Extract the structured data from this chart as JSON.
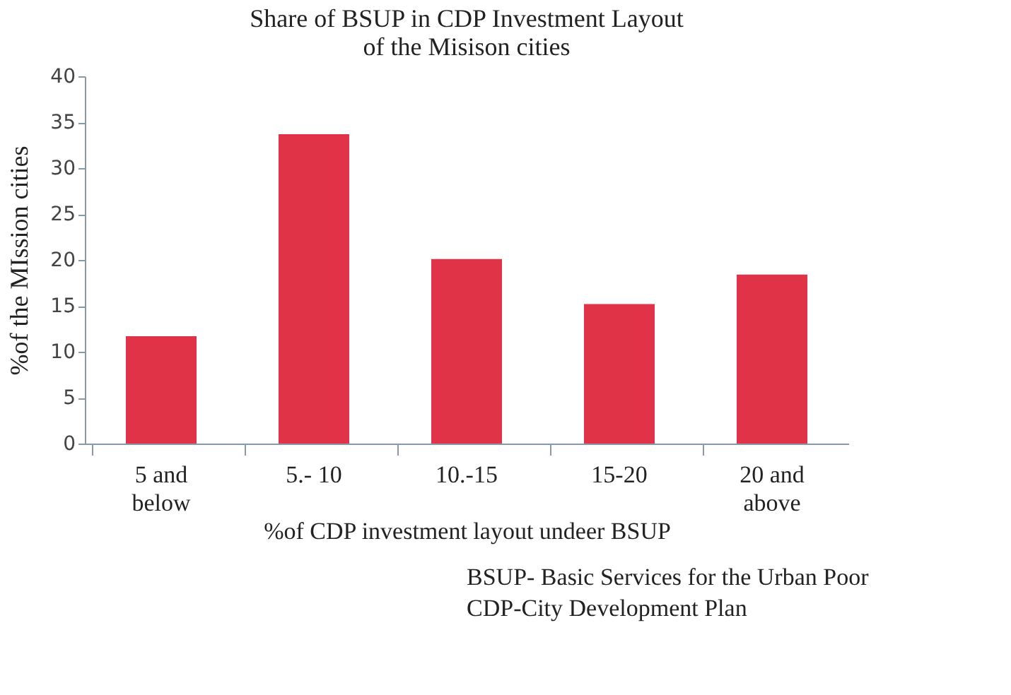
{
  "chart_data": {
    "type": "bar",
    "title": [
      "Share of BSUP in CDP Investment Layout",
      "of the Misison cities"
    ],
    "xlabel": "%of CDP investment layout undeer BSUP",
    "ylabel": "%of the MIssion cities",
    "categories": [
      "5 and below",
      "5.- 10",
      "10.-15",
      "15-20",
      "20 and above"
    ],
    "values": [
      11.7,
      33.7,
      20.1,
      15.2,
      18.4
    ],
    "color": "#e03348",
    "ylim": [
      0,
      40
    ],
    "yticks": [
      0,
      5,
      10,
      15,
      20,
      25,
      30,
      35,
      40
    ],
    "grid": false,
    "annotations": [
      "BSUP- Basic Services for the Urban Poor",
      "CDP-City Development Plan"
    ]
  }
}
